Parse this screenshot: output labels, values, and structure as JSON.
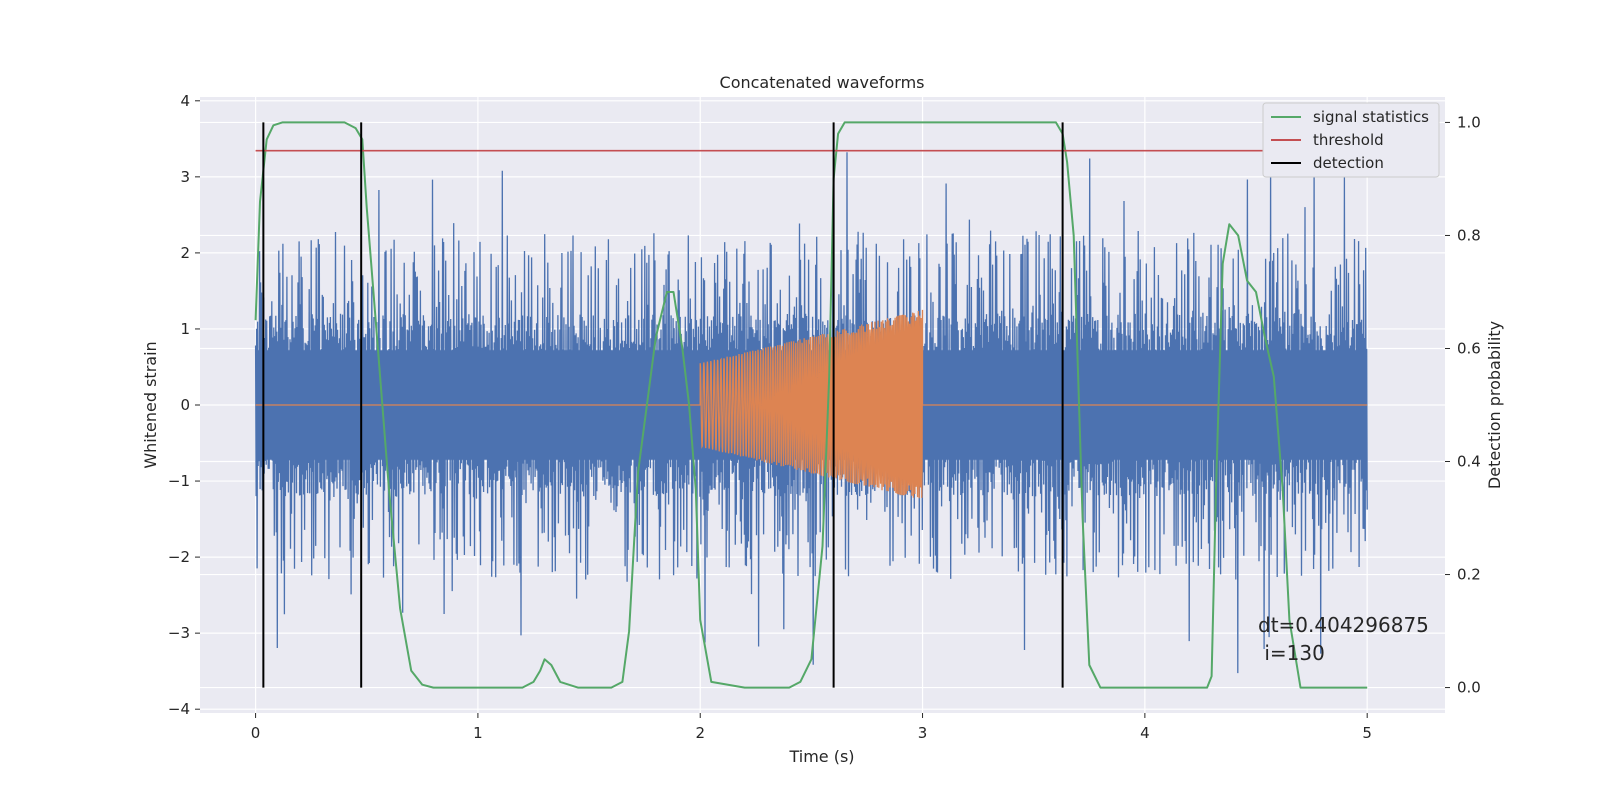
{
  "chart_data": {
    "type": "line",
    "title": "Concatenated waveforms",
    "xlabel": "Time (s)",
    "ylabel_left": "Whitened strain",
    "ylabel_right": "Detection probability",
    "xlim": [
      -0.25,
      5.35
    ],
    "ylim_left": [
      -4.05,
      4.05
    ],
    "ylim_right": [
      -0.045,
      1.045
    ],
    "x_ticks": [
      0,
      1,
      2,
      3,
      4,
      5
    ],
    "y_left_ticks": [
      -4,
      -3,
      -2,
      -1,
      0,
      1,
      2,
      3,
      4
    ],
    "y_right_ticks": [
      0.0,
      0.2,
      0.4,
      0.6,
      0.8,
      1.0
    ],
    "grid": true,
    "legend_position": "top-right",
    "legend": [
      "signal statistics",
      "threshold",
      "detection"
    ],
    "annotation_lines": [
      "dt=0.404296875",
      " i=130"
    ],
    "colors": {
      "strain": "#4c72b0",
      "injected_signal": "#dd8452",
      "signal_statistics": "#55a868",
      "threshold": "#c44e52",
      "detection": "#000000",
      "background": "#eaeaf2",
      "grid": "#ffffff"
    },
    "strain_series": {
      "name": "",
      "t_start": 0.0,
      "t_end": 5.0,
      "core_band": [
        -0.72,
        0.72
      ],
      "typical_peak": 2.3,
      "max_value": 3.7,
      "min_value": -3.65
    },
    "injected_signal": {
      "name": "",
      "t_start": 2.0,
      "t_end": 3.0,
      "amp_start": 0.55,
      "amp_end": 1.25,
      "outside_value": 0.0
    },
    "signal_statistics": {
      "name": "signal statistics",
      "x": [
        0.0,
        0.02,
        0.05,
        0.08,
        0.12,
        0.2,
        0.3,
        0.4,
        0.45,
        0.48,
        0.5,
        0.52,
        0.55,
        0.6,
        0.65,
        0.7,
        0.75,
        0.8,
        1.0,
        1.2,
        1.25,
        1.28,
        1.3,
        1.33,
        1.37,
        1.45,
        1.6,
        1.65,
        1.68,
        1.72,
        1.76,
        1.8,
        1.85,
        1.88,
        1.92,
        1.95,
        1.98,
        2.0,
        2.05,
        2.2,
        2.4,
        2.45,
        2.5,
        2.55,
        2.58,
        2.6,
        2.62,
        2.65,
        2.7,
        3.0,
        3.5,
        3.6,
        3.63,
        3.65,
        3.68,
        3.72,
        3.75,
        3.8,
        4.0,
        4.28,
        4.3,
        4.32,
        4.35,
        4.38,
        4.42,
        4.46,
        4.5,
        4.54,
        4.58,
        4.62,
        4.65,
        4.7,
        5.0
      ],
      "y": [
        0.65,
        0.86,
        0.97,
        0.995,
        1.0,
        1.0,
        1.0,
        1.0,
        0.99,
        0.97,
        0.85,
        0.75,
        0.6,
        0.35,
        0.14,
        0.03,
        0.005,
        0.0,
        0.0,
        0.0,
        0.01,
        0.03,
        0.05,
        0.04,
        0.01,
        0.0,
        0.0,
        0.01,
        0.1,
        0.38,
        0.5,
        0.62,
        0.7,
        0.7,
        0.6,
        0.5,
        0.35,
        0.12,
        0.01,
        0.0,
        0.0,
        0.01,
        0.05,
        0.25,
        0.55,
        0.9,
        0.98,
        1.0,
        1.0,
        1.0,
        1.0,
        1.0,
        0.98,
        0.93,
        0.8,
        0.3,
        0.04,
        0.0,
        0.0,
        0.0,
        0.02,
        0.35,
        0.75,
        0.82,
        0.8,
        0.72,
        0.7,
        0.62,
        0.55,
        0.35,
        0.12,
        0.0,
        0.0
      ]
    },
    "threshold": {
      "name": "threshold",
      "value": 0.95,
      "x": [
        0.0,
        5.0
      ]
    },
    "detections": {
      "name": "detection",
      "x": [
        0.035,
        0.475,
        2.6,
        3.63
      ],
      "y_range": [
        0.0,
        1.0
      ]
    }
  }
}
